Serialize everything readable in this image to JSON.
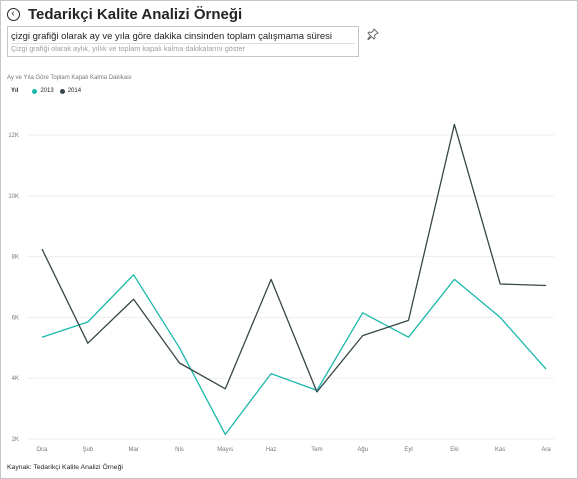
{
  "header": {
    "title": "Tedarikçi Kalite Analizi Örneği",
    "back_icon": "back-arrow-icon"
  },
  "qa": {
    "query": "çizgi grafiği olarak ay ve yıla göre dakika cinsinden toplam çalışmama süresi",
    "restatement": "Çizgi grafiği olarak aylık, yıllık ve toplam kapalı kalma dakikalarını göster",
    "pin_icon": "pin-icon"
  },
  "legend": {
    "label": "Yıl"
  },
  "footer": {
    "source": "Kaynak: Tedarikçi Kalite Analizi Örneği"
  },
  "chart_data": {
    "type": "line",
    "title": "Ay ve Yıla Göre Toplam Kapalı Kalma Dakikası",
    "categories": [
      "Oca",
      "Şub",
      "Mar",
      "Nis",
      "Mayıs",
      "Haz",
      "Tem",
      "Ağu",
      "Eyl",
      "Eki",
      "Kas",
      "Ara"
    ],
    "series": [
      {
        "name": "2013",
        "color": "#1ab8aa",
        "values": [
          5350,
          5850,
          7400,
          5000,
          2150,
          4150,
          3600,
          6150,
          5350,
          7250,
          6000,
          4300
        ]
      },
      {
        "name": "2014",
        "color": "#374649",
        "values": [
          8250,
          5150,
          6600,
          4500,
          3650,
          7250,
          3550,
          5400,
          5900,
          12350,
          7100,
          7050
        ]
      }
    ],
    "y_ticks": [
      2000,
      4000,
      6000,
      8000,
      10000,
      12000
    ],
    "y_tick_labels": [
      "2K",
      "4K",
      "6K",
      "8K",
      "10K",
      "12K"
    ],
    "ylim": [
      2000,
      12500
    ],
    "grid": true,
    "legend_position": "top-left"
  }
}
